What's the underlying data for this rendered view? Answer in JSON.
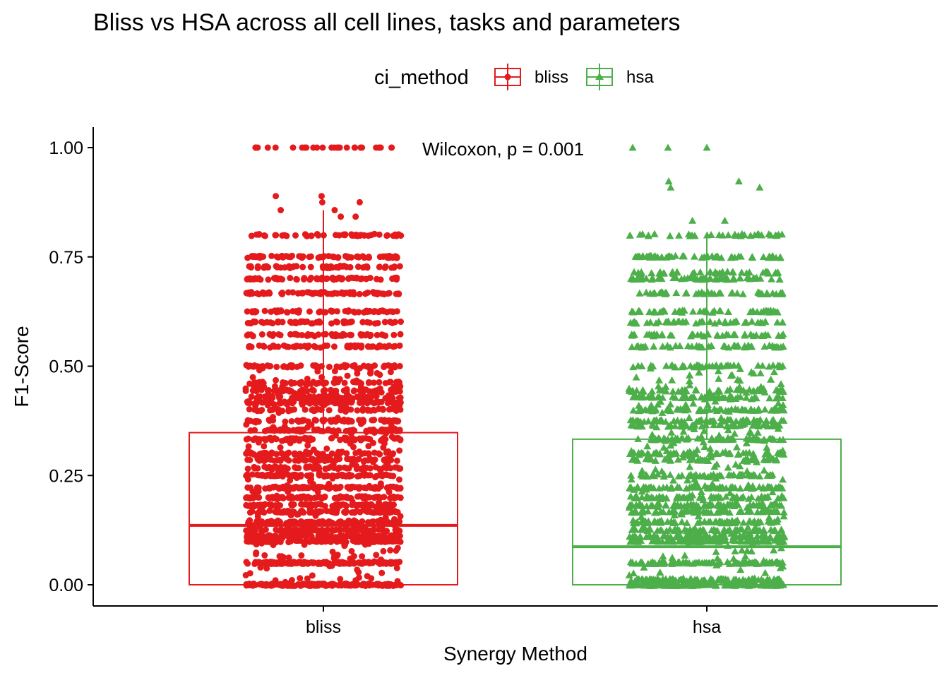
{
  "chart_data": {
    "type": "box",
    "title": "Bliss vs HSA across all cell lines, tasks and parameters",
    "xlabel": "Synergy Method",
    "ylabel": "F1-Score",
    "categories": [
      "bliss",
      "hsa"
    ],
    "ylim": [
      -0.05,
      1.05
    ],
    "y_ticks": [
      0.0,
      0.25,
      0.5,
      0.75,
      1.0
    ],
    "y_tick_labels": [
      "0.00",
      "0.25",
      "0.50",
      "0.75",
      "1.00"
    ],
    "legend": {
      "title": "ci_method",
      "placement": "top",
      "entries": [
        "bliss",
        "hsa"
      ]
    },
    "annotation": "Wilcoxon, p = 0.001",
    "grid": false,
    "series": [
      {
        "name": "bliss",
        "color": "#e41a1c",
        "marker": "circle",
        "box": {
          "min": 0.0,
          "q1": 0.0,
          "median": 0.136,
          "q3": 0.348,
          "max": 0.857
        },
        "outliers": [
          1.0,
          0.889,
          0.875,
          0.857,
          0.842
        ],
        "jitter_levels": [
          0,
          0.05,
          0.1,
          0.111,
          0.125,
          0.143,
          0.167,
          0.182,
          0.2,
          0.222,
          0.25,
          0.267,
          0.286,
          0.3,
          0.333,
          0.353,
          0.375,
          0.4,
          0.417,
          0.429,
          0.444,
          0.462,
          0.5,
          0.545,
          0.571,
          0.6,
          0.625,
          0.667,
          0.7,
          0.727,
          0.75,
          0.8
        ]
      },
      {
        "name": "hsa",
        "color": "#4daf4a",
        "marker": "triangle",
        "box": {
          "min": 0.0,
          "q1": 0.0,
          "median": 0.087,
          "q3": 0.333,
          "max": 0.8
        },
        "outliers": [
          1.0,
          0.923,
          0.909,
          0.833
        ],
        "jitter_levels": [
          0,
          0.011,
          0.05,
          0.1,
          0.111,
          0.125,
          0.143,
          0.167,
          0.182,
          0.2,
          0.222,
          0.25,
          0.286,
          0.3,
          0.333,
          0.364,
          0.375,
          0.4,
          0.429,
          0.444,
          0.5,
          0.545,
          0.571,
          0.6,
          0.625,
          0.667,
          0.7,
          0.714,
          0.75,
          0.8
        ]
      }
    ]
  }
}
